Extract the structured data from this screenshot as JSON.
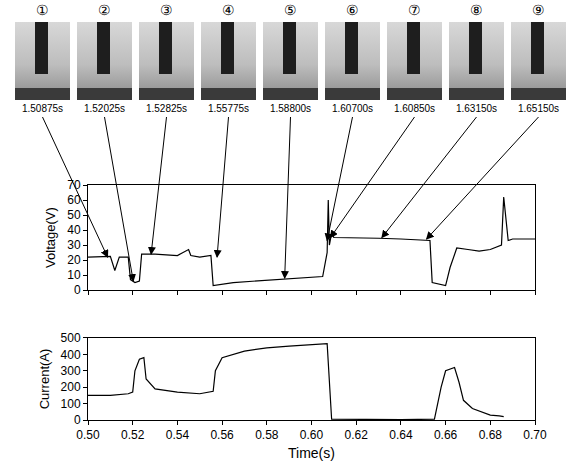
{
  "chart_data": [
    {
      "type": "line",
      "y_label": "Voltage(V)",
      "color": "#000000",
      "grid": false,
      "tick_labels": "y",
      "xlim": [
        0.5,
        0.7
      ],
      "xticks": [
        0.5,
        0.52,
        0.54,
        0.56,
        0.58,
        0.6,
        0.62,
        0.64,
        0.66,
        0.68,
        0.7
      ],
      "ylim": [
        0,
        70
      ],
      "yticks": [
        0,
        10,
        20,
        30,
        40,
        50,
        60,
        70
      ],
      "x": [
        0.5,
        0.505,
        0.51,
        0.512,
        0.514,
        0.518,
        0.519,
        0.521,
        0.523,
        0.524,
        0.53,
        0.54,
        0.545,
        0.546,
        0.55,
        0.555,
        0.556,
        0.565,
        0.575,
        0.585,
        0.595,
        0.605,
        0.607,
        0.6075,
        0.608,
        0.609,
        0.61,
        0.62,
        0.63,
        0.64,
        0.65,
        0.653,
        0.654,
        0.66,
        0.662,
        0.665,
        0.67,
        0.675,
        0.68,
        0.685,
        0.686,
        0.688,
        0.69,
        0.7
      ],
      "values": [
        22,
        22,
        22.5,
        13,
        22,
        22,
        7,
        5,
        6,
        24,
        24,
        23,
        27,
        23,
        22,
        23,
        3,
        5,
        6,
        7,
        8,
        9,
        25,
        60,
        30,
        38,
        35,
        35,
        34.5,
        34,
        33.5,
        33,
        5,
        3,
        15,
        28,
        27,
        26,
        27,
        30,
        62,
        33,
        34,
        34
      ]
    },
    {
      "type": "line",
      "y_label": "Current(A)",
      "x_label": "Time(s)",
      "color": "#000000",
      "grid": false,
      "xlim": [
        0.5,
        0.7
      ],
      "xticks": [
        {
          "value": 0.5,
          "label": "0.50"
        },
        {
          "value": 0.52,
          "label": "0.52"
        },
        {
          "value": 0.54,
          "label": "0.54"
        },
        {
          "value": 0.56,
          "label": "0.56"
        },
        {
          "value": 0.58,
          "label": "0.58"
        },
        {
          "value": 0.6,
          "label": "0.60"
        },
        {
          "value": 0.62,
          "label": "0.62"
        },
        {
          "value": 0.64,
          "label": "0.64"
        },
        {
          "value": 0.66,
          "label": "0.66"
        },
        {
          "value": 0.68,
          "label": "0.68"
        },
        {
          "value": 0.7,
          "label": "0.70"
        }
      ],
      "ylim": [
        0,
        500
      ],
      "yticks": [
        0,
        100,
        200,
        300,
        400,
        500
      ],
      "x": [
        0.5,
        0.51,
        0.518,
        0.52,
        0.521,
        0.523,
        0.525,
        0.526,
        0.53,
        0.54,
        0.55,
        0.556,
        0.557,
        0.56,
        0.57,
        0.58,
        0.59,
        0.6,
        0.607,
        0.609,
        0.62,
        0.64,
        0.655,
        0.658,
        0.66,
        0.664,
        0.666,
        0.668,
        0.672,
        0.676,
        0.68,
        0.684,
        0.686
      ],
      "values": [
        150,
        150,
        160,
        170,
        300,
        370,
        380,
        250,
        190,
        170,
        160,
        175,
        300,
        380,
        420,
        440,
        450,
        460,
        465,
        5,
        3,
        2,
        5,
        200,
        300,
        320,
        230,
        120,
        70,
        50,
        30,
        25,
        20
      ]
    }
  ],
  "frames": [
    {
      "label": "①",
      "time": "1.50875s",
      "x": 0.50875,
      "y": 22
    },
    {
      "label": "②",
      "time": "1.52025s",
      "x": 0.52025,
      "y": 6
    },
    {
      "label": "③",
      "time": "1.52825s",
      "x": 0.52825,
      "y": 24
    },
    {
      "label": "④",
      "time": "1.55775s",
      "x": 0.55775,
      "y": 22
    },
    {
      "label": "⑤",
      "time": "1.58800s",
      "x": 0.588,
      "y": 8
    },
    {
      "label": "⑥",
      "time": "1.60700s",
      "x": 0.607,
      "y": 33
    },
    {
      "label": "⑦",
      "time": "1.60850s",
      "x": 0.6085,
      "y": 35
    },
    {
      "label": "⑧",
      "time": "1.63150s",
      "x": 0.6315,
      "y": 35
    },
    {
      "label": "⑨",
      "time": "1.65150s",
      "x": 0.6515,
      "y": 34
    }
  ]
}
